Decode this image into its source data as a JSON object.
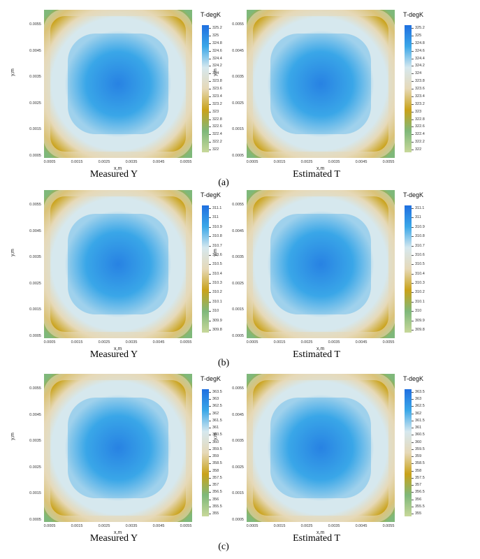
{
  "chart_data": [
    {
      "type": "heatmap",
      "figure_tag": "(a)",
      "caption": "Measured Y",
      "xlabel": "x,m",
      "ylabel": "y,m",
      "colorbar_title": "T-degK",
      "x_ticks": [
        "0.0005",
        "0.0015",
        "0.0025",
        "0.0035",
        "0.0045",
        "0.0055"
      ],
      "y_ticks": [
        "0.0055",
        "0.0045",
        "0.0035",
        "0.0025",
        "0.0015",
        "0.0005"
      ],
      "colorbar_ticks": [
        "325.2",
        "325",
        "324.8",
        "324.6",
        "324.4",
        "324.2",
        "324",
        "323.8",
        "323.6",
        "323.4",
        "323.2",
        "323",
        "322.8",
        "322.6",
        "322.4",
        "322.2",
        "322"
      ],
      "zlim": [
        321.9,
        325.3
      ]
    },
    {
      "type": "heatmap",
      "figure_tag": "(a)",
      "caption": "Estimated T",
      "xlabel": "x,m",
      "ylabel": "y,m",
      "colorbar_title": "T-degK",
      "x_ticks": [
        "0.0005",
        "0.0015",
        "0.0025",
        "0.0035",
        "0.0045",
        "0.0055"
      ],
      "y_ticks": [
        "0.0055",
        "0.0045",
        "0.0035",
        "0.0025",
        "0.0015",
        "0.0005"
      ],
      "colorbar_ticks": [
        "325.2",
        "325",
        "324.8",
        "324.6",
        "324.4",
        "324.2",
        "324",
        "323.8",
        "323.6",
        "323.4",
        "323.2",
        "323",
        "322.8",
        "322.6",
        "322.4",
        "322.2",
        "322"
      ],
      "zlim": [
        321.9,
        325.3
      ]
    },
    {
      "type": "heatmap",
      "figure_tag": "(b)",
      "caption": "Measured Y",
      "xlabel": "x,m",
      "ylabel": "y,m",
      "colorbar_title": "T-degK",
      "x_ticks": [
        "0.0005",
        "0.0015",
        "0.0025",
        "0.0035",
        "0.0045",
        "0.0055"
      ],
      "y_ticks": [
        "0.0055",
        "0.0045",
        "0.0035",
        "0.0025",
        "0.0015",
        "0.0005"
      ],
      "colorbar_ticks": [
        "311.1",
        "311",
        "310.9",
        "310.8",
        "310.7",
        "310.6",
        "310.5",
        "310.4",
        "310.3",
        "310.2",
        "310.1",
        "310",
        "309.9",
        "309.8"
      ],
      "zlim": [
        309.75,
        311.15
      ]
    },
    {
      "type": "heatmap",
      "figure_tag": "(b)",
      "caption": "Estimated T",
      "xlabel": "x,m",
      "ylabel": "y,m",
      "colorbar_title": "T-degK",
      "x_ticks": [
        "0.0005",
        "0.0015",
        "0.0025",
        "0.0035",
        "0.0045",
        "0.0055"
      ],
      "y_ticks": [
        "0.0055",
        "0.0045",
        "0.0035",
        "0.0025",
        "0.0015",
        "0.0005"
      ],
      "colorbar_ticks": [
        "311.1",
        "311",
        "310.9",
        "310.8",
        "310.7",
        "310.6",
        "310.5",
        "310.4",
        "310.3",
        "310.2",
        "310.1",
        "310",
        "309.9",
        "309.8"
      ],
      "zlim": [
        309.75,
        311.15
      ]
    },
    {
      "type": "heatmap",
      "figure_tag": "(c)",
      "caption": "Measured Y",
      "xlabel": "x,m",
      "ylabel": "y,m",
      "colorbar_title": "T-degK",
      "x_ticks": [
        "0.0005",
        "0.0015",
        "0.0025",
        "0.0035",
        "0.0045",
        "0.0055"
      ],
      "y_ticks": [
        "0.0055",
        "0.0045",
        "0.0035",
        "0.0025",
        "0.0015",
        "0.0005"
      ],
      "colorbar_ticks": [
        "363.5",
        "363",
        "362.5",
        "362",
        "361.5",
        "361",
        "360.5",
        "360",
        "359.5",
        "359",
        "358.5",
        "358",
        "357.5",
        "357",
        "356.5",
        "356",
        "355.5",
        "355"
      ],
      "zlim": [
        354.8,
        363.7
      ]
    },
    {
      "type": "heatmap",
      "figure_tag": "(c)",
      "caption": "Estimated T",
      "xlabel": "x,m",
      "ylabel": "y,m",
      "colorbar_title": "T-degK",
      "x_ticks": [
        "0.0005",
        "0.0015",
        "0.0025",
        "0.0035",
        "0.0045",
        "0.0055"
      ],
      "y_ticks": [
        "0.0055",
        "0.0045",
        "0.0035",
        "0.0025",
        "0.0015",
        "0.0005"
      ],
      "colorbar_ticks": [
        "363.5",
        "363",
        "362.5",
        "362",
        "361.5",
        "361",
        "360.5",
        "360",
        "359.5",
        "359",
        "358.5",
        "358",
        "357.5",
        "357",
        "356.5",
        "356",
        "355.5",
        "355"
      ],
      "zlim": [
        354.8,
        363.7
      ]
    }
  ],
  "colormap": [
    "#c8d89a",
    "#7fb87a",
    "#c9a21a",
    "#e6d9b8",
    "#d6e8ee",
    "#3aa7e8",
    "#1f6fe0"
  ]
}
